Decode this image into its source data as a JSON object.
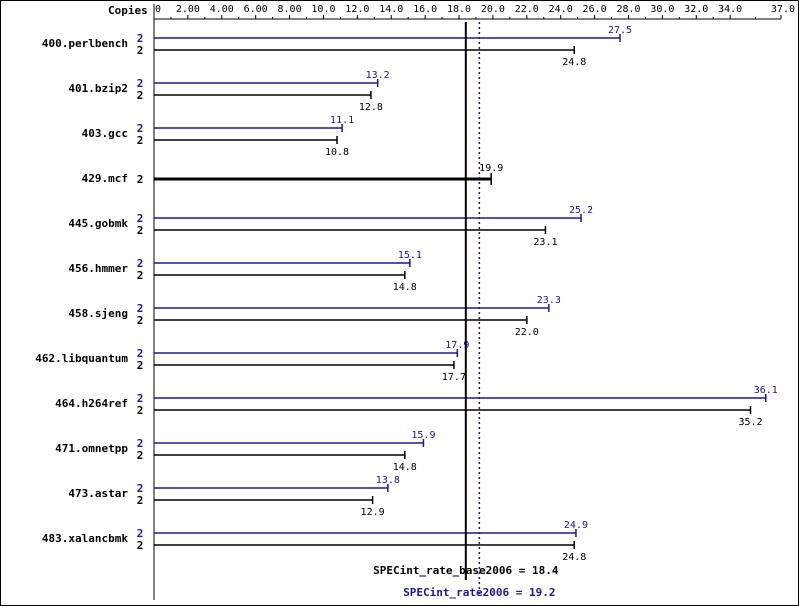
{
  "chart_data": {
    "type": "bar",
    "orientation": "horizontal",
    "axis": {
      "title": "Copies",
      "min": 0,
      "max": 37.0,
      "ticks": [
        "0",
        "2.00",
        "4.00",
        "6.00",
        "8.00",
        "10.0",
        "12.0",
        "14.0",
        "16.0",
        "18.0",
        "20.0",
        "22.0",
        "24.0",
        "26.0",
        "28.0",
        "30.0",
        "32.0",
        "34.0",
        "37.0"
      ],
      "tick_values": [
        0,
        2,
        4,
        6,
        8,
        10,
        12,
        14,
        16,
        18,
        20,
        22,
        24,
        26,
        28,
        30,
        32,
        34,
        37
      ]
    },
    "colors": {
      "peak": "#1a1a8c",
      "base": "#000000",
      "axis": "#000000"
    },
    "categories": [
      "400.perlbench",
      "401.bzip2",
      "403.gcc",
      "429.mcf",
      "445.gobmk",
      "456.hmmer",
      "458.sjeng",
      "462.libquantum",
      "464.h264ref",
      "471.omnetpp",
      "473.astar",
      "483.xalancbmk"
    ],
    "series": [
      {
        "key": "peak",
        "copies": [
          "2",
          "2",
          "2",
          "",
          "2",
          "2",
          "2",
          "2",
          "2",
          "2",
          "2",
          "2"
        ],
        "values": [
          27.5,
          13.2,
          11.1,
          null,
          25.2,
          15.1,
          23.3,
          17.9,
          36.1,
          15.9,
          13.8,
          24.9
        ],
        "labels": [
          "27.5",
          "13.2",
          "11.1",
          "",
          "25.2",
          "15.1",
          "23.3",
          "17.9",
          "36.1",
          "15.9",
          "13.8",
          "24.9"
        ]
      },
      {
        "key": "base",
        "copies": [
          "2",
          "2",
          "2",
          "2",
          "2",
          "2",
          "2",
          "2",
          "2",
          "2",
          "2",
          "2"
        ],
        "values": [
          24.8,
          12.8,
          10.8,
          19.9,
          23.1,
          14.8,
          22.0,
          17.7,
          35.2,
          14.8,
          12.9,
          24.8
        ],
        "labels": [
          "24.8",
          "12.8",
          "10.8",
          "19.9",
          "23.1",
          "14.8",
          "22.0",
          "17.7",
          "35.2",
          "14.8",
          "12.9",
          "24.8"
        ]
      }
    ],
    "combined_rows": [
      3
    ],
    "summary": {
      "base_label": "SPECint_rate_base2006 = 18.4",
      "base_value": 18.4,
      "peak_label": "SPECint_rate2006 = 19.2",
      "peak_value": 19.2
    }
  }
}
